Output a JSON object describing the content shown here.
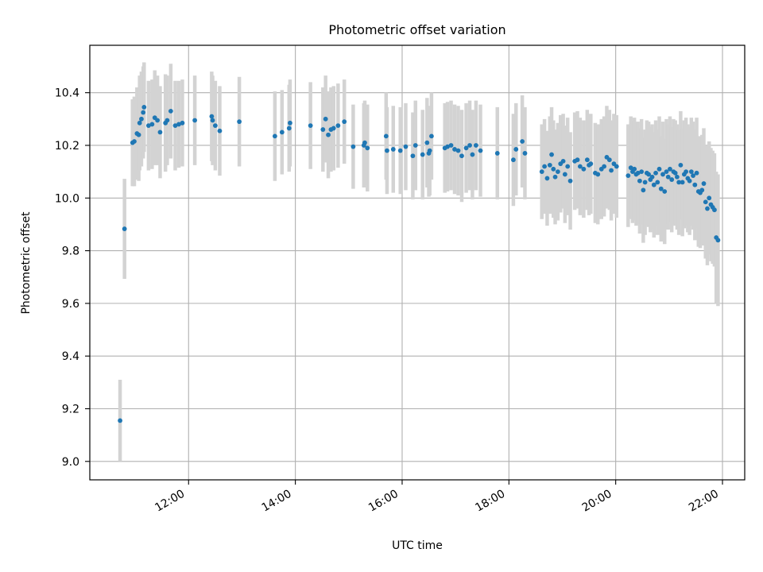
{
  "chart_data": {
    "type": "scatter",
    "title": "Photometric offset variation",
    "xlabel": "UTC time",
    "ylabel": "Photometric offset",
    "x_ticks": [
      "12:00",
      "14:00",
      "16:00",
      "18:00",
      "20:00",
      "22:00"
    ],
    "y_ticks": [
      "9.0",
      "9.2",
      "9.4",
      "9.6",
      "9.8",
      "10.0",
      "10.2",
      "10.4"
    ],
    "xlim": [
      "10:09",
      "22:25"
    ],
    "ylim": [
      8.93,
      10.58
    ],
    "grid": true,
    "colors": {
      "point": "#1f77b4",
      "errorbar": "#d3d3d3",
      "grid": "#b0b0b0",
      "axes": "#000000"
    },
    "series": [
      {
        "x": [
          "10:43",
          "10:48",
          "10:57",
          "10:59",
          "11:02",
          "11:04",
          "11:05",
          "11:07",
          "11:09",
          "11:10",
          "11:15",
          "11:19",
          "11:22",
          "11:25",
          "11:28",
          "11:34",
          "11:36",
          "11:40",
          "11:45",
          "11:49",
          "11:53",
          "12:07",
          "12:26",
          "12:27",
          "12:30",
          "12:35",
          "12:57",
          "13:37",
          "13:45",
          "13:53",
          "13:54",
          "14:17",
          "14:31",
          "14:34",
          "14:37",
          "14:40",
          "14:43",
          "14:48",
          "14:55",
          "15:05",
          "15:17",
          "15:18",
          "15:21",
          "15:42",
          "15:43",
          "15:50",
          "15:58",
          "16:04",
          "16:12",
          "16:15",
          "16:23",
          "16:28",
          "16:30",
          "16:31",
          "16:33",
          "16:48",
          "16:51",
          "16:55",
          "16:59",
          "17:03",
          "17:07",
          "17:12",
          "17:16",
          "17:19",
          "17:23",
          "17:28",
          "17:47",
          "18:05",
          "18:08",
          "18:15",
          "18:18",
          "18:37",
          "18:40",
          "18:43",
          "18:46",
          "18:48",
          "18:50",
          "18:52",
          "18:55",
          "18:58",
          "19:01",
          "19:03",
          "19:06",
          "19:09",
          "19:14",
          "19:17",
          "19:20",
          "19:24",
          "19:28",
          "19:30",
          "19:32",
          "19:37",
          "19:40",
          "19:44",
          "19:47",
          "19:50",
          "19:53",
          "19:55",
          "19:58",
          "20:01",
          "20:14",
          "20:17",
          "20:19",
          "20:21",
          "20:23",
          "20:25",
          "20:27",
          "20:29",
          "20:31",
          "20:33",
          "20:35",
          "20:37",
          "20:39",
          "20:41",
          "20:43",
          "20:45",
          "20:47",
          "20:49",
          "20:51",
          "20:53",
          "20:55",
          "20:57",
          "20:59",
          "21:01",
          "21:03",
          "21:05",
          "21:07",
          "21:09",
          "21:11",
          "21:13",
          "21:15",
          "21:17",
          "21:19",
          "21:21",
          "21:23",
          "21:25",
          "21:27",
          "21:29",
          "21:31",
          "21:33",
          "21:35",
          "21:37",
          "21:39",
          "21:41",
          "21:43",
          "21:45",
          "21:47",
          "21:49",
          "21:51",
          "21:53",
          "21:55"
        ],
        "y": [
          9.155,
          9.883,
          10.21,
          10.215,
          10.245,
          10.24,
          10.285,
          10.3,
          10.325,
          10.345,
          10.275,
          10.28,
          10.305,
          10.295,
          10.25,
          10.285,
          10.295,
          10.33,
          10.275,
          10.28,
          10.285,
          10.295,
          10.31,
          10.295,
          10.275,
          10.255,
          10.29,
          10.235,
          10.25,
          10.265,
          10.285,
          10.275,
          10.26,
          10.3,
          10.24,
          10.26,
          10.265,
          10.275,
          10.29,
          10.195,
          10.2,
          10.21,
          10.19,
          10.235,
          10.18,
          10.185,
          10.18,
          10.195,
          10.16,
          10.2,
          10.165,
          10.21,
          10.17,
          10.18,
          10.235,
          10.19,
          10.195,
          10.2,
          10.185,
          10.18,
          10.16,
          10.19,
          10.2,
          10.165,
          10.2,
          10.18,
          10.17,
          10.145,
          10.185,
          10.215,
          10.17,
          10.1,
          10.12,
          10.075,
          10.125,
          10.165,
          10.11,
          10.08,
          10.1,
          10.13,
          10.14,
          10.09,
          10.12,
          10.065,
          10.14,
          10.145,
          10.12,
          10.11,
          10.145,
          10.125,
          10.13,
          10.095,
          10.09,
          10.11,
          10.12,
          10.155,
          10.145,
          10.105,
          10.13,
          10.12,
          10.085,
          10.115,
          10.1,
          10.11,
          10.09,
          10.095,
          10.065,
          10.1,
          10.03,
          10.06,
          10.095,
          10.09,
          10.07,
          10.08,
          10.05,
          10.095,
          10.06,
          10.11,
          10.035,
          10.09,
          10.025,
          10.1,
          10.08,
          10.11,
          10.07,
          10.1,
          10.095,
          10.08,
          10.06,
          10.125,
          10.06,
          10.09,
          10.1,
          10.075,
          10.065,
          10.1,
          10.085,
          10.05,
          10.095,
          10.025,
          10.02,
          10.03,
          10.055,
          9.985,
          9.96,
          10.0,
          9.975,
          9.965,
          9.955,
          9.85,
          9.84
        ],
        "yerr": [
          0.155,
          0.19,
          0.165,
          0.17,
          0.175,
          0.175,
          0.18,
          0.18,
          0.175,
          0.17,
          0.17,
          0.17,
          0.18,
          0.17,
          0.175,
          0.185,
          0.17,
          0.18,
          0.17,
          0.165,
          0.165,
          0.17,
          0.17,
          0.17,
          0.17,
          0.17,
          0.17,
          0.17,
          0.16,
          0.165,
          0.165,
          0.165,
          0.16,
          0.165,
          0.165,
          0.16,
          0.16,
          0.16,
          0.16,
          0.16,
          0.16,
          0.16,
          0.165,
          0.165,
          0.165,
          0.165,
          0.165,
          0.165,
          0.165,
          0.17,
          0.17,
          0.17,
          0.165,
          0.17,
          0.165,
          0.17,
          0.17,
          0.17,
          0.17,
          0.17,
          0.175,
          0.17,
          0.17,
          0.17,
          0.17,
          0.175,
          0.175,
          0.175,
          0.175,
          0.175,
          0.175,
          0.18,
          0.18,
          0.18,
          0.185,
          0.18,
          0.185,
          0.18,
          0.185,
          0.185,
          0.18,
          0.185,
          0.185,
          0.185,
          0.185,
          0.185,
          0.185,
          0.185,
          0.19,
          0.19,
          0.19,
          0.19,
          0.19,
          0.19,
          0.19,
          0.195,
          0.19,
          0.19,
          0.19,
          0.195,
          0.195,
          0.195,
          0.195,
          0.195,
          0.195,
          0.195,
          0.2,
          0.2,
          0.2,
          0.2,
          0.2,
          0.2,
          0.2,
          0.2,
          0.2,
          0.2,
          0.2,
          0.2,
          0.2,
          0.2,
          0.2,
          0.2,
          0.2,
          0.2,
          0.2,
          0.2,
          0.2,
          0.2,
          0.2,
          0.205,
          0.205,
          0.205,
          0.205,
          0.205,
          0.205,
          0.205,
          0.205,
          0.21,
          0.21,
          0.21,
          0.21,
          0.21,
          0.21,
          0.215,
          0.215,
          0.215,
          0.215,
          0.215,
          0.215,
          0.25,
          0.25
        ]
      }
    ]
  }
}
